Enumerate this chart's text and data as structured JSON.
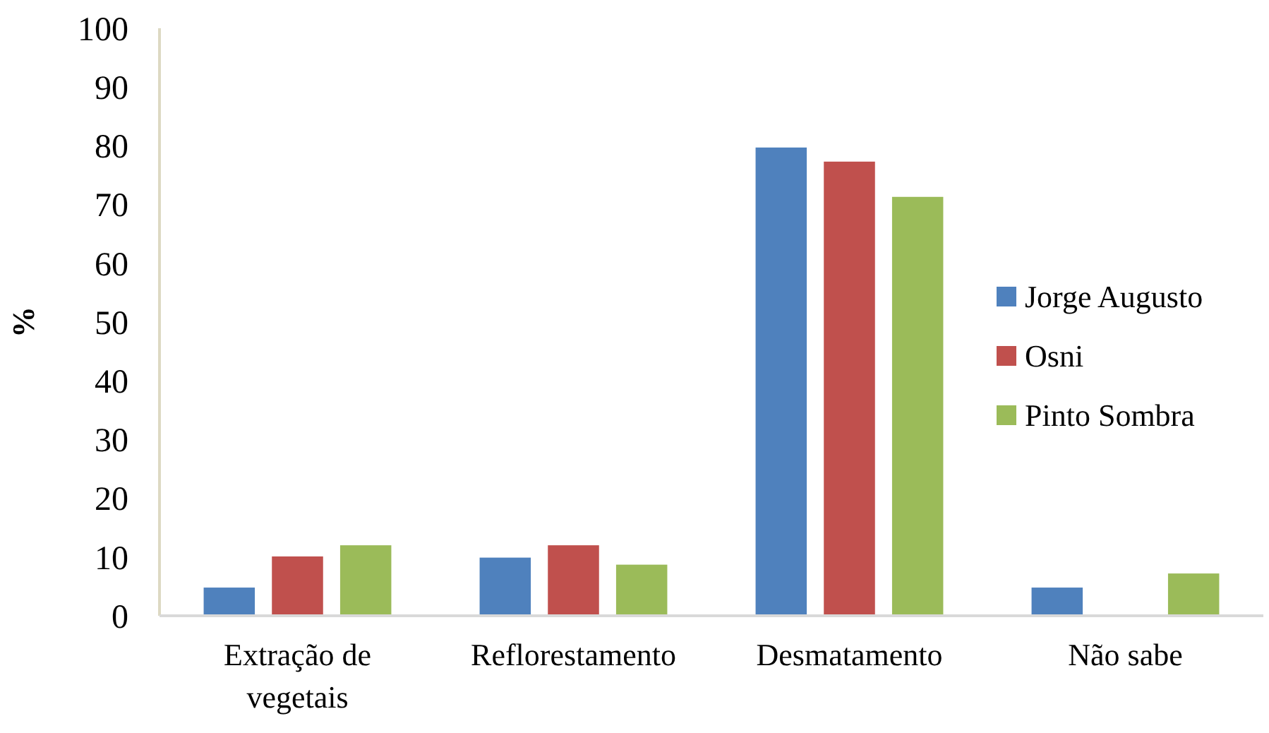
{
  "chart_data": {
    "type": "bar",
    "ylabel": "%",
    "categories": [
      "Extração de vegetais",
      "Reflorestamento",
      "Desmatamento",
      "Não sabe"
    ],
    "series": [
      {
        "name": "Jorge Augusto",
        "color": "#4f81bd",
        "values": [
          4.8,
          9.9,
          79.7,
          4.8
        ]
      },
      {
        "name": "Osni",
        "color": "#c0504d",
        "values": [
          10.1,
          12,
          77.3,
          null
        ]
      },
      {
        "name": "Pinto Sombra",
        "color": "#9bbb59",
        "values": [
          12,
          8.7,
          71.3,
          7.2
        ]
      }
    ],
    "ylim": [
      0,
      100
    ],
    "yticks": [
      0,
      10,
      20,
      30,
      40,
      50,
      60,
      70,
      80,
      90,
      100
    ],
    "grid": false,
    "legend": "right"
  }
}
